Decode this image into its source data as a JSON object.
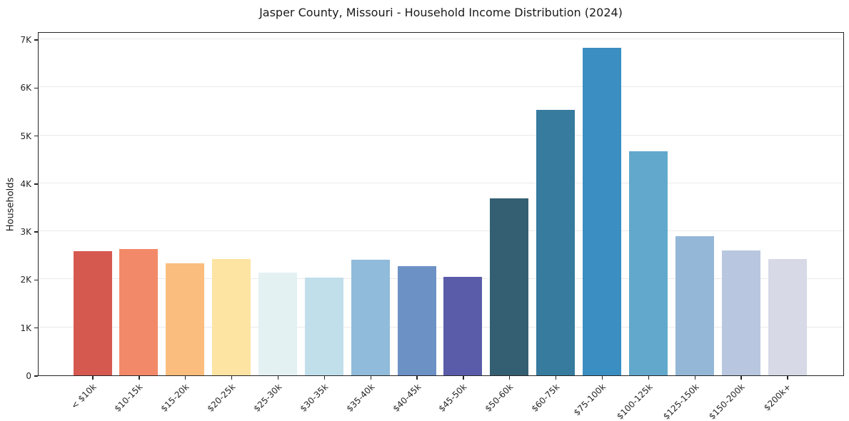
{
  "chart_data": {
    "type": "bar",
    "title": "Jasper County, Missouri - Household Income Distribution (2024)",
    "xlabel": "",
    "ylabel": "Households",
    "ylim": [
      0,
      7000
    ],
    "grid": "horizontal-light",
    "legend": null,
    "background_color": "#ffffff",
    "axis_color": "#262626",
    "gridline_color": "#eaeaea",
    "ytick_labels": [
      "0",
      "1K",
      "2K",
      "3K",
      "4K",
      "5K",
      "6K",
      "7K"
    ],
    "ytick_values": [
      0,
      1000,
      2000,
      3000,
      4000,
      5000,
      6000,
      7000
    ],
    "categories": [
      "< $10k",
      "$10-15k",
      "$15-20k",
      "$20-25k",
      "$25-30k",
      "$30-35k",
      "$35-40k",
      "$40-45k",
      "$45-50k",
      "$50-60k",
      "$60-75k",
      "$75-100k",
      "$100-125k",
      "$125-150k",
      "$150-200k",
      "$200k+"
    ],
    "values": [
      2580,
      2630,
      2330,
      2420,
      2140,
      2030,
      2410,
      2270,
      2050,
      3680,
      5530,
      6820,
      4670,
      2900,
      2600,
      2420
    ],
    "bar_colors": [
      "#d6594f",
      "#f28a69",
      "#fabd7e",
      "#fde4a2",
      "#e4f1f2",
      "#c1dfeb",
      "#90bbda",
      "#6c91c5",
      "#5a5caa",
      "#345f73",
      "#377b9e",
      "#3a8ec2",
      "#62a8cc",
      "#94b7d7",
      "#b8c7df",
      "#d7d9e6"
    ]
  }
}
